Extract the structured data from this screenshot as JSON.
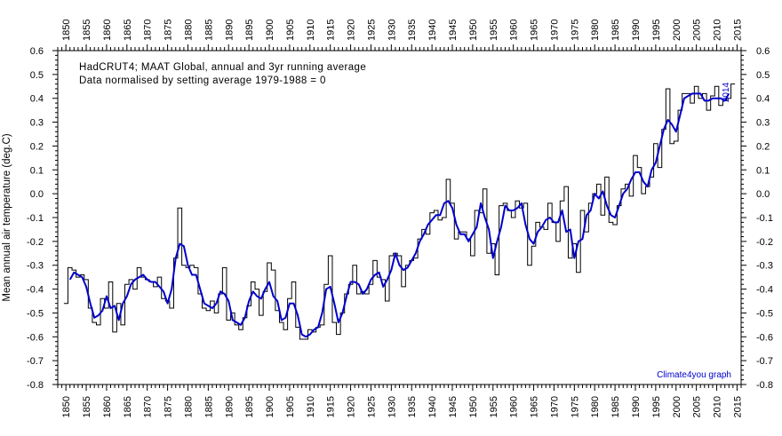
{
  "chart_data": {
    "type": "line",
    "title": "HadCRUT4; MAAT Global, annual and 3yr running average",
    "subtitle": "Data normalised by setting average 1979-1988 = 0",
    "ylabel": "Mean annual air temperature (deg.C)",
    "xlabel": "",
    "xlim": [
      1848,
      2016
    ],
    "ylim": [
      -0.8,
      0.6
    ],
    "year_label": "2014",
    "credit": "Climate4you graph",
    "grid": false,
    "colors": {
      "annual": "#000000",
      "running": "#0000cc",
      "credit": "#0000cc"
    },
    "x_ticks": [
      "1850",
      "1855",
      "1860",
      "1865",
      "1870",
      "1875",
      "1880",
      "1885",
      "1890",
      "1895",
      "1900",
      "1905",
      "1910",
      "1915",
      "1920",
      "1925",
      "1930",
      "1935",
      "1940",
      "1945",
      "1950",
      "1955",
      "1960",
      "1965",
      "1970",
      "1975",
      "1980",
      "1985",
      "1990",
      "1995",
      "2000",
      "2005",
      "2010",
      "2015"
    ],
    "y_ticks": [
      "0.6",
      "0.5",
      "0.4",
      "0.3",
      "0.2",
      "0.1",
      "0.0",
      "-0.1",
      "-0.2",
      "-0.3",
      "-0.4",
      "-0.5",
      "-0.6",
      "-0.7",
      "-0.8"
    ],
    "series": [
      {
        "style": "step",
        "x": [
          1850,
          1851,
          1852,
          1853,
          1854,
          1855,
          1856,
          1857,
          1858,
          1859,
          1860,
          1861,
          1862,
          1863,
          1864,
          1865,
          1866,
          1867,
          1868,
          1869,
          1870,
          1871,
          1872,
          1873,
          1874,
          1875,
          1876,
          1877,
          1878,
          1879,
          1880,
          1881,
          1882,
          1883,
          1884,
          1885,
          1886,
          1887,
          1888,
          1889,
          1890,
          1891,
          1892,
          1893,
          1894,
          1895,
          1896,
          1897,
          1898,
          1899,
          1900,
          1901,
          1902,
          1903,
          1904,
          1905,
          1906,
          1907,
          1908,
          1909,
          1910,
          1911,
          1912,
          1913,
          1914,
          1915,
          1916,
          1917,
          1918,
          1919,
          1920,
          1921,
          1922,
          1923,
          1924,
          1925,
          1926,
          1927,
          1928,
          1929,
          1930,
          1931,
          1932,
          1933,
          1934,
          1935,
          1936,
          1937,
          1938,
          1939,
          1940,
          1941,
          1942,
          1943,
          1944,
          1945,
          1946,
          1947,
          1948,
          1949,
          1950,
          1951,
          1952,
          1953,
          1954,
          1955,
          1956,
          1957,
          1958,
          1959,
          1960,
          1961,
          1962,
          1963,
          1964,
          1965,
          1966,
          1967,
          1968,
          1969,
          1970,
          1971,
          1972,
          1973,
          1974,
          1975,
          1976,
          1977,
          1978,
          1979,
          1980,
          1981,
          1982,
          1983,
          1984,
          1985,
          1986,
          1987,
          1988,
          1989,
          1990,
          1991,
          1992,
          1993,
          1994,
          1995,
          1996,
          1997,
          1998,
          1999,
          2000,
          2001,
          2002,
          2003,
          2004,
          2005,
          2006,
          2007,
          2008,
          2009,
          2010,
          2011,
          2012,
          2013,
          2014
        ],
        "y": [
          -0.46,
          -0.31,
          -0.32,
          -0.35,
          -0.34,
          -0.36,
          -0.48,
          -0.54,
          -0.55,
          -0.44,
          -0.48,
          -0.37,
          -0.58,
          -0.46,
          -0.55,
          -0.38,
          -0.36,
          -0.4,
          -0.31,
          -0.35,
          -0.36,
          -0.37,
          -0.39,
          -0.35,
          -0.44,
          -0.45,
          -0.48,
          -0.27,
          -0.06,
          -0.3,
          -0.31,
          -0.3,
          -0.31,
          -0.42,
          -0.48,
          -0.49,
          -0.45,
          -0.5,
          -0.42,
          -0.31,
          -0.53,
          -0.5,
          -0.55,
          -0.57,
          -0.52,
          -0.47,
          -0.37,
          -0.4,
          -0.51,
          -0.41,
          -0.29,
          -0.32,
          -0.49,
          -0.54,
          -0.57,
          -0.44,
          -0.37,
          -0.56,
          -0.61,
          -0.61,
          -0.57,
          -0.58,
          -0.56,
          -0.55,
          -0.38,
          -0.26,
          -0.54,
          -0.59,
          -0.5,
          -0.42,
          -0.38,
          -0.3,
          -0.42,
          -0.41,
          -0.42,
          -0.38,
          -0.28,
          -0.35,
          -0.36,
          -0.45,
          -0.26,
          -0.25,
          -0.26,
          -0.39,
          -0.3,
          -0.28,
          -0.27,
          -0.19,
          -0.15,
          -0.17,
          -0.08,
          -0.07,
          -0.11,
          -0.1,
          0.06,
          -0.04,
          -0.19,
          -0.16,
          -0.16,
          -0.19,
          -0.26,
          -0.07,
          -0.08,
          0.02,
          -0.25,
          -0.21,
          -0.34,
          -0.05,
          -0.04,
          -0.07,
          -0.1,
          -0.03,
          -0.06,
          -0.04,
          -0.3,
          -0.22,
          -0.12,
          -0.14,
          -0.15,
          -0.04,
          -0.12,
          -0.2,
          -0.03,
          0.03,
          -0.27,
          -0.21,
          -0.33,
          -0.07,
          -0.16,
          -0.04,
          0.0,
          0.04,
          -0.09,
          0.07,
          -0.12,
          -0.13,
          -0.05,
          0.02,
          0.04,
          -0.01,
          0.16,
          0.11,
          0.0,
          0.03,
          0.07,
          0.21,
          0.11,
          0.27,
          0.44,
          0.21,
          0.22,
          0.35,
          0.42,
          0.42,
          0.38,
          0.45,
          0.4,
          0.42,
          0.35,
          0.41,
          0.45,
          0.37,
          0.39,
          0.4,
          0.46
        ]
      },
      {
        "style": "line",
        "x": [
          1851,
          1852,
          1853,
          1854,
          1855,
          1856,
          1857,
          1858,
          1859,
          1860,
          1861,
          1862,
          1863,
          1864,
          1865,
          1866,
          1867,
          1868,
          1869,
          1870,
          1871,
          1872,
          1873,
          1874,
          1875,
          1876,
          1877,
          1878,
          1879,
          1880,
          1881,
          1882,
          1883,
          1884,
          1885,
          1886,
          1887,
          1888,
          1889,
          1890,
          1891,
          1892,
          1893,
          1894,
          1895,
          1896,
          1897,
          1898,
          1899,
          1900,
          1901,
          1902,
          1903,
          1904,
          1905,
          1906,
          1907,
          1908,
          1909,
          1910,
          1911,
          1912,
          1913,
          1914,
          1915,
          1916,
          1917,
          1918,
          1919,
          1920,
          1921,
          1922,
          1923,
          1924,
          1925,
          1926,
          1927,
          1928,
          1929,
          1930,
          1931,
          1932,
          1933,
          1934,
          1935,
          1936,
          1937,
          1938,
          1939,
          1940,
          1941,
          1942,
          1943,
          1944,
          1945,
          1946,
          1947,
          1948,
          1949,
          1950,
          1951,
          1952,
          1953,
          1954,
          1955,
          1956,
          1957,
          1958,
          1959,
          1960,
          1961,
          1962,
          1963,
          1964,
          1965,
          1966,
          1967,
          1968,
          1969,
          1970,
          1971,
          1972,
          1973,
          1974,
          1975,
          1976,
          1977,
          1978,
          1979,
          1980,
          1981,
          1982,
          1983,
          1984,
          1985,
          1986,
          1987,
          1988,
          1989,
          1990,
          1991,
          1992,
          1993,
          1994,
          1995,
          1996,
          1997,
          1998,
          1999,
          2000,
          2001,
          2002,
          2003,
          2004,
          2005,
          2006,
          2007,
          2008,
          2009,
          2010,
          2011,
          2012,
          2013
        ],
        "y": [
          -0.36,
          -0.33,
          -0.34,
          -0.35,
          -0.39,
          -0.46,
          -0.52,
          -0.51,
          -0.49,
          -0.43,
          -0.48,
          -0.47,
          -0.53,
          -0.46,
          -0.43,
          -0.38,
          -0.36,
          -0.35,
          -0.34,
          -0.36,
          -0.37,
          -0.37,
          -0.39,
          -0.41,
          -0.46,
          -0.4,
          -0.27,
          -0.21,
          -0.22,
          -0.3,
          -0.34,
          -0.34,
          -0.4,
          -0.46,
          -0.47,
          -0.48,
          -0.46,
          -0.41,
          -0.42,
          -0.45,
          -0.53,
          -0.54,
          -0.55,
          -0.52,
          -0.45,
          -0.41,
          -0.43,
          -0.44,
          -0.4,
          -0.37,
          -0.43,
          -0.45,
          -0.53,
          -0.52,
          -0.46,
          -0.46,
          -0.51,
          -0.59,
          -0.6,
          -0.59,
          -0.57,
          -0.56,
          -0.5,
          -0.4,
          -0.39,
          -0.46,
          -0.54,
          -0.5,
          -0.43,
          -0.37,
          -0.37,
          -0.38,
          -0.42,
          -0.4,
          -0.36,
          -0.34,
          -0.33,
          -0.39,
          -0.36,
          -0.32,
          -0.25,
          -0.3,
          -0.32,
          -0.31,
          -0.28,
          -0.25,
          -0.2,
          -0.17,
          -0.13,
          -0.11,
          -0.09,
          -0.09,
          -0.04,
          -0.03,
          -0.06,
          -0.13,
          -0.17,
          -0.17,
          -0.2,
          -0.17,
          -0.14,
          -0.04,
          -0.1,
          -0.15,
          -0.27,
          -0.2,
          -0.14,
          -0.05,
          -0.07,
          -0.07,
          -0.06,
          -0.04,
          -0.13,
          -0.19,
          -0.21,
          -0.16,
          -0.14,
          -0.11,
          -0.1,
          -0.12,
          -0.12,
          -0.07,
          -0.16,
          -0.15,
          -0.27,
          -0.2,
          -0.19,
          -0.09,
          -0.07,
          0.0,
          -0.02,
          0.01,
          -0.05,
          -0.09,
          -0.1,
          -0.05,
          0.0,
          0.02,
          0.06,
          0.09,
          0.09,
          0.05,
          0.03,
          0.1,
          0.13,
          0.2,
          0.27,
          0.31,
          0.29,
          0.26,
          0.33,
          0.4,
          0.41,
          0.42,
          0.42,
          0.42,
          0.39,
          0.39,
          0.4,
          0.4,
          0.4,
          0.39,
          0.42
        ]
      }
    ]
  }
}
